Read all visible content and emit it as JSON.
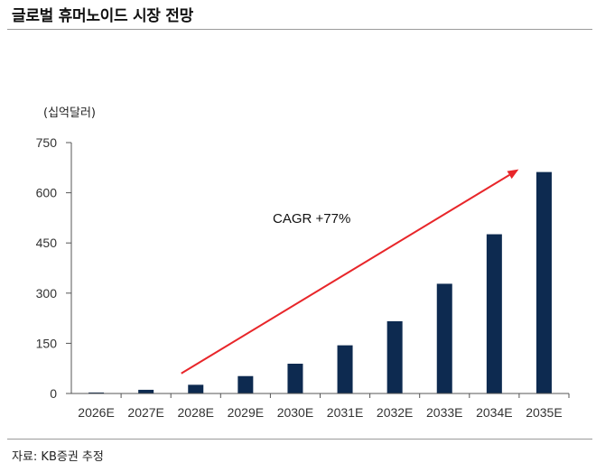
{
  "header": {
    "title": "글로벌 휴머노이드 시장 전망"
  },
  "unit_label": "(십억달러)",
  "footer": {
    "source": "자료: KB증권 추정"
  },
  "colors": {
    "bar": "#0d2a50",
    "arrow": "#e8262a",
    "axis": "#555555",
    "text": "#333333"
  },
  "chart_data": {
    "type": "bar",
    "title": "",
    "xlabel": "",
    "ylabel": "",
    "categories": [
      "2026E",
      "2027E",
      "2028E",
      "2029E",
      "2030E",
      "2031E",
      "2032E",
      "2033E",
      "2034E",
      "2035E"
    ],
    "values": [
      3,
      11,
      26,
      52,
      89,
      144,
      216,
      328,
      476,
      662
    ],
    "ylim": [
      0,
      750
    ],
    "yticks": [
      0,
      150,
      300,
      450,
      600,
      750
    ],
    "grid": false,
    "legend": "none",
    "annotation": {
      "text": "CAGR +77%",
      "type": "arrow",
      "from_category": "2028E",
      "to_category": "2034E"
    }
  }
}
